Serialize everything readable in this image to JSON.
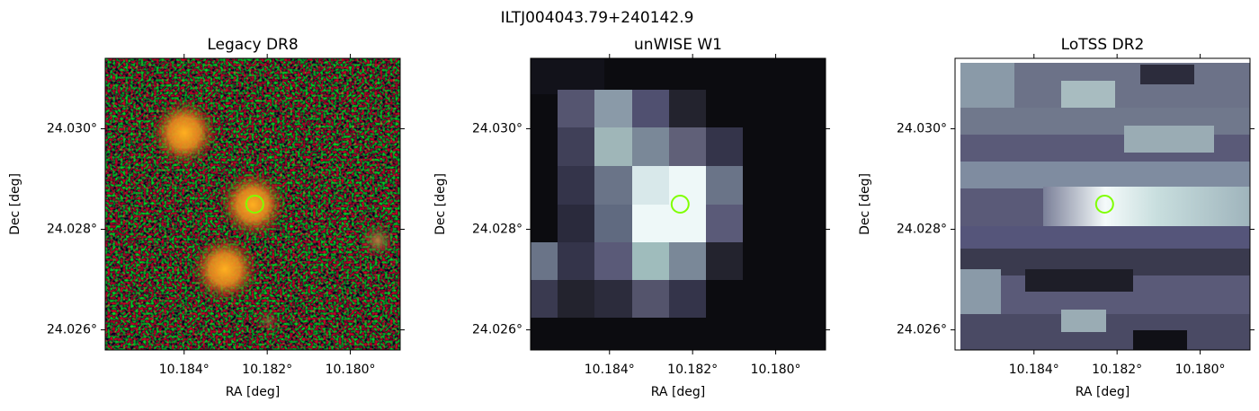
{
  "title": "ILTJ004043.79+240142.9",
  "chart_data": [
    {
      "type": "image",
      "title": "Legacy DR8",
      "xlabel": "RA [deg]",
      "ylabel": "Dec [deg]",
      "xlim": [
        10.1859,
        10.1788
      ],
      "ylim": [
        24.0256,
        24.0314
      ],
      "xticks": [
        {
          "value": 10.184,
          "label": "10.184°"
        },
        {
          "value": 10.182,
          "label": "10.182°"
        },
        {
          "value": 10.18,
          "label": "10.180°"
        }
      ],
      "yticks": [
        {
          "value": 24.026,
          "label": "24.026°"
        },
        {
          "value": 24.028,
          "label": "24.028°"
        },
        {
          "value": 24.03,
          "label": "24.030°"
        }
      ],
      "marker": {
        "x": 10.1823,
        "y": 24.0285,
        "color": "#7fff00"
      }
    },
    {
      "type": "image",
      "title": "unWISE W1",
      "xlabel": "RA [deg]",
      "ylabel": "Dec [deg]",
      "xlim": [
        10.1859,
        10.1788
      ],
      "ylim": [
        24.0256,
        24.0314
      ],
      "xticks": [
        {
          "value": 10.184,
          "label": "10.184°"
        },
        {
          "value": 10.182,
          "label": "10.182°"
        },
        {
          "value": 10.18,
          "label": "10.180°"
        }
      ],
      "yticks": [
        {
          "value": 24.026,
          "label": "24.026°"
        },
        {
          "value": 24.028,
          "label": "24.028°"
        },
        {
          "value": 24.03,
          "label": "24.030°"
        }
      ],
      "marker": {
        "x": 10.1823,
        "y": 24.0285,
        "color": "#7fff00"
      }
    },
    {
      "type": "image",
      "title": "LoTSS DR2",
      "xlabel": "RA [deg]",
      "ylabel": "Dec [deg]",
      "xlim": [
        10.1859,
        10.1788
      ],
      "ylim": [
        24.0256,
        24.0314
      ],
      "xticks": [
        {
          "value": 10.184,
          "label": "10.184°"
        },
        {
          "value": 10.182,
          "label": "10.182°"
        },
        {
          "value": 10.18,
          "label": "10.180°"
        }
      ],
      "yticks": [
        {
          "value": 24.026,
          "label": "24.026°"
        },
        {
          "value": 24.028,
          "label": "24.028°"
        },
        {
          "value": 24.03,
          "label": "24.030°"
        }
      ],
      "marker": {
        "x": 10.1823,
        "y": 24.0285,
        "color": "#7fff00"
      }
    }
  ]
}
